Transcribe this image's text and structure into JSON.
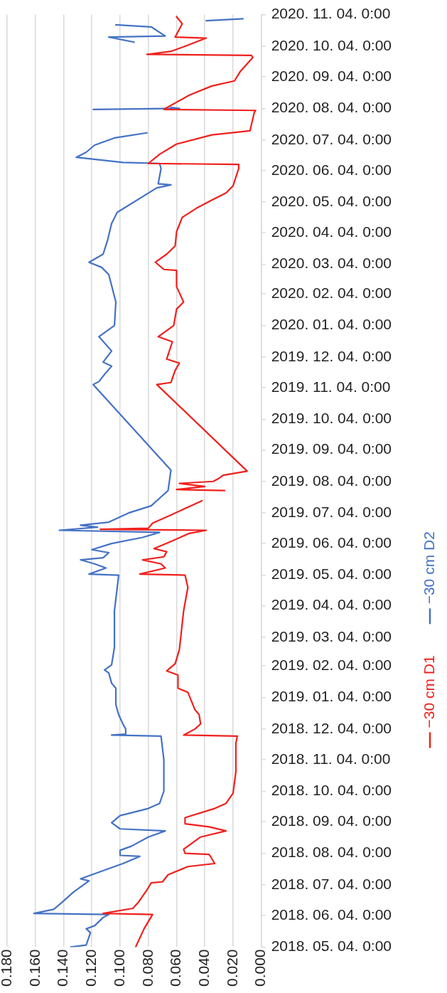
{
  "chart_data": {
    "type": "line",
    "orientation": "horizontal",
    "marker": "none",
    "grid": "x",
    "legend": "right",
    "ylim": [
      "2018-05-04",
      "2020-11-04"
    ],
    "yticks": [
      {
        "value": "2018-05-04",
        "label": "2018. 05. 04. 0:00"
      },
      {
        "value": "2018-06-04",
        "label": "2018. 06. 04. 0:00"
      },
      {
        "value": "2018-07-04",
        "label": "2018. 07. 04. 0:00"
      },
      {
        "value": "2018-08-04",
        "label": "2018. 08. 04. 0:00"
      },
      {
        "value": "2018-09-04",
        "label": "2018. 09. 04. 0:00"
      },
      {
        "value": "2018-10-04",
        "label": "2018. 10. 04. 0:00"
      },
      {
        "value": "2018-11-04",
        "label": "2018. 11. 04. 0:00"
      },
      {
        "value": "2018-12-04",
        "label": "2018. 12. 04. 0:00"
      },
      {
        "value": "2019-01-04",
        "label": "2019. 01. 04. 0:00"
      },
      {
        "value": "2019-02-04",
        "label": "2019. 02. 04. 0:00"
      },
      {
        "value": "2019-03-04",
        "label": "2019. 03. 04. 0:00"
      },
      {
        "value": "2019-04-04",
        "label": "2019. 04. 04. 0:00"
      },
      {
        "value": "2019-05-04",
        "label": "2019. 05. 04. 0:00"
      },
      {
        "value": "2019-06-04",
        "label": "2019. 06. 04. 0:00"
      },
      {
        "value": "2019-07-04",
        "label": "2019. 07. 04. 0:00"
      },
      {
        "value": "2019-08-04",
        "label": "2019. 08. 04. 0:00"
      },
      {
        "value": "2019-09-04",
        "label": "2019. 09. 04. 0:00"
      },
      {
        "value": "2019-10-04",
        "label": "2019. 10. 04. 0:00"
      },
      {
        "value": "2019-11-04",
        "label": "2019. 11. 04. 0:00"
      },
      {
        "value": "2019-12-04",
        "label": "2019. 12. 04. 0:00"
      },
      {
        "value": "2020-01-04",
        "label": "2020. 01. 04. 0:00"
      },
      {
        "value": "2020-02-04",
        "label": "2020. 02. 04. 0:00"
      },
      {
        "value": "2020-03-04",
        "label": "2020. 03. 04. 0:00"
      },
      {
        "value": "2020-04-04",
        "label": "2020. 04. 04. 0:00"
      },
      {
        "value": "2020-05-04",
        "label": "2020. 05. 04. 0:00"
      },
      {
        "value": "2020-06-04",
        "label": "2020. 06. 04. 0:00"
      },
      {
        "value": "2020-07-04",
        "label": "2020. 07. 04. 0:00"
      },
      {
        "value": "2020-08-04",
        "label": "2020. 08. 04. 0:00"
      },
      {
        "value": "2020-09-04",
        "label": "2020. 09. 04. 0:00"
      },
      {
        "value": "2020-10-04",
        "label": "2020. 10. 04. 0:00"
      },
      {
        "value": "2020-11-04",
        "label": "2020. 11. 04. 0:00"
      }
    ],
    "xlim": [
      0.18,
      0
    ],
    "xticks": [
      {
        "value": 0,
        "label": "0.000"
      },
      {
        "value": 0.02,
        "label": "0.020"
      },
      {
        "value": 0.04,
        "label": "0.040"
      },
      {
        "value": 0.06,
        "label": "0.060"
      },
      {
        "value": 0.08,
        "label": "0.080"
      },
      {
        "value": 0.1,
        "label": "0.100"
      },
      {
        "value": 0.12,
        "label": "0.120"
      },
      {
        "value": 0.14,
        "label": "0.140"
      },
      {
        "value": 0.16,
        "label": "0.160"
      },
      {
        "value": 0.18,
        "label": "0.180"
      }
    ],
    "series": [
      {
        "name": "−30 cm D1",
        "color": "#f0201c",
        "x": [
          "2018-05-04",
          "2018-05-22",
          "2018-06-05",
          "2018-06-06",
          "2018-06-11",
          "2018-06-17",
          "2018-06-29",
          "2018-07-06",
          "2018-07-07",
          "2018-07-14",
          "2018-07-22",
          "2018-07-25",
          "2018-08-01",
          "2018-08-03",
          "2018-08-04",
          "2018-08-08",
          "2018-08-20",
          "2018-08-26",
          "2018-08-30",
          "2018-09-02",
          "2018-09-08",
          "2018-09-17",
          "2018-09-22",
          "2018-10-02",
          "2018-10-23",
          "2018-11-20",
          "2018-11-27",
          "2018-11-28",
          "2018-12-04",
          "2018-12-09",
          "2018-12-18",
          "2018-12-23",
          "2019-01-09",
          "2019-01-13",
          "2019-01-26",
          "2019-01-30",
          "2019-02-06",
          "2019-02-20",
          "2019-03-30",
          "2019-04-22",
          "2019-05-04",
          "2019-05-05",
          "2019-05-11",
          "2019-05-15",
          "2019-05-19",
          "2019-05-22",
          "2019-05-27",
          "2019-05-30",
          "2019-06-06",
          "2019-06-14",
          "2019-06-17",
          "2019-06-18",
          "2019-06-19",
          "2019-06-24",
          "2019-07-02",
          "2019-07-16",
          "2019-07-20",
          "2019-07-26",
          "2019-07-27",
          "2019-07-30",
          "2019-08-02",
          "2019-08-04",
          "2019-08-07",
          "2019-08-10",
          "2019-08-14",
          "2019-11-07",
          "2019-11-09",
          "2019-11-21",
          "2019-11-28",
          "2019-12-02",
          "2019-12-19",
          "2019-12-24",
          "2020-01-04",
          "2020-01-20",
          "2020-01-27",
          "2020-02-11",
          "2020-02-27",
          "2020-02-28",
          "2020-03-06",
          "2020-03-14",
          "2020-03-22",
          "2020-04-05",
          "2020-04-19",
          "2020-04-28",
          "2020-05-06",
          "2020-05-13",
          "2020-05-20",
          "2020-06-06",
          "2020-06-10",
          "2020-06-11",
          "2020-06-20",
          "2020-06-30",
          "2020-07-09",
          "2020-07-13",
          "2020-07-31",
          "2020-08-02",
          "2020-08-03",
          "2020-08-17",
          "2020-08-26",
          "2020-08-31",
          "2020-09-09",
          "2020-09-23",
          "2020-09-25",
          "2020-09-26",
          "2020-09-29",
          "2020-10-05",
          "2020-10-12",
          "2020-10-13",
          "2020-10-26",
          "2020-11-02"
        ],
        "values": [
          0.089,
          0.083,
          0.077,
          0.112,
          0.091,
          0.087,
          0.081,
          0.078,
          0.07,
          0.066,
          0.052,
          0.033,
          0.036,
          0.037,
          0.054,
          0.055,
          0.043,
          0.025,
          0.037,
          0.054,
          0.054,
          0.033,
          0.025,
          0.02,
          0.018,
          0.018,
          0.017,
          0.055,
          0.047,
          0.043,
          0.044,
          0.047,
          0.052,
          0.059,
          0.059,
          0.067,
          0.061,
          0.058,
          0.055,
          0.052,
          0.054,
          0.086,
          0.068,
          0.071,
          0.084,
          0.069,
          0.067,
          0.076,
          0.064,
          0.051,
          0.039,
          0.114,
          0.08,
          0.077,
          0.064,
          0.042,
          null,
          0.026,
          0.06,
          0.04,
          0.058,
          0.034,
          0.03,
          0.027,
          0.01,
          0.074,
          0.064,
          0.061,
          0.058,
          0.067,
          0.063,
          0.073,
          0.062,
          0.06,
          0.055,
          0.06,
          0.06,
          0.069,
          0.075,
          0.067,
          0.061,
          0.06,
          0.056,
          0.046,
          0.035,
          0.025,
          0.02,
          0.016,
          0.016,
          0.08,
          0.072,
          0.06,
          0.035,
          0.008,
          0.005,
          0.004,
          0.069,
          0.051,
          0.035,
          0.019,
          0.015,
          0.006,
          0.007,
          0.081,
          0.064,
          0.052,
          0.039,
          0.061,
          0.056,
          0.06
        ]
      },
      {
        "name": "−30 cm D2",
        "color": "#4472c4",
        "x": [
          "2018-05-04",
          "2018-05-06",
          "2018-05-18",
          "2018-05-22",
          "2018-05-25",
          "2018-06-02",
          "2018-06-05",
          "2018-06-06",
          "2018-06-10",
          "2018-06-17",
          "2018-06-27",
          "2018-07-08",
          "2018-07-10",
          "2018-07-18",
          "2018-07-25",
          "2018-08-01",
          "2018-08-02",
          "2018-08-07",
          "2018-08-11",
          "2018-08-20",
          "2018-08-26",
          "2018-08-28",
          "2018-09-03",
          "2018-09-10",
          "2018-09-17",
          "2018-09-22",
          "2018-10-04",
          "2018-11-04",
          "2018-11-27",
          "2018-11-28",
          "2018-11-29",
          "2018-12-04",
          "2018-12-09",
          "2018-12-18",
          "2018-12-28",
          "2019-01-13",
          "2019-01-18",
          "2019-01-28",
          "2019-01-31",
          "2019-02-05",
          "2019-02-22",
          "2019-03-30",
          "2019-04-22",
          "2019-05-04",
          "2019-05-05",
          "2019-05-11",
          "2019-05-15",
          "2019-05-19",
          "2019-05-21",
          "2019-05-26",
          "2019-05-29",
          "2019-06-04",
          "2019-06-10",
          "2019-06-15",
          "2019-06-17",
          "2019-06-20",
          "2019-06-22",
          "2019-06-25",
          "2019-07-04",
          "2019-07-11",
          "2019-07-21",
          "2019-07-26",
          "2019-08-15",
          "2019-11-07",
          "2019-11-10",
          "2019-11-17",
          "2019-11-25",
          "2019-11-29",
          "2019-12-10",
          "2019-12-24",
          "2020-01-04",
          "2020-01-27",
          "2020-02-23",
          "2020-03-01",
          "2020-03-06",
          "2020-03-14",
          "2020-03-27",
          "2020-04-13",
          "2020-04-24",
          "2020-05-18",
          "2020-05-21",
          "2020-05-22",
          "2020-06-06",
          "2020-06-11",
          "2020-06-12",
          "2020-06-17",
          "2020-06-22",
          "2020-06-29",
          "2020-07-06",
          "2020-07-11",
          "2020-07-20",
          "2020-08-03",
          "2020-08-04",
          "2020-08-05",
          "2020-09-01",
          "2020-10-08",
          "2020-10-13",
          "2020-10-14",
          "2020-10-23",
          "2020-10-25",
          "2020-10-27",
          "2020-10-29",
          "2020-10-31"
        ],
        "values": [
          0.135,
          0.124,
          0.121,
          0.124,
          0.118,
          0.112,
          0.108,
          0.161,
          0.147,
          0.141,
          0.133,
          0.122,
          0.128,
          0.112,
          0.098,
          0.086,
          0.1,
          0.1,
          0.092,
          0.08,
          0.068,
          0.1,
          0.106,
          0.1,
          0.08,
          0.072,
          0.069,
          0.069,
          0.071,
          0.106,
          0.096,
          0.096,
          0.098,
          0.101,
          0.103,
          0.103,
          0.106,
          0.108,
          0.111,
          0.106,
          0.104,
          0.104,
          0.102,
          0.101,
          0.122,
          0.11,
          0.118,
          0.128,
          0.112,
          0.108,
          0.12,
          0.106,
          0.084,
          0.072,
          0.143,
          0.116,
          0.128,
          0.108,
          0.094,
          0.078,
          0.07,
          0.066,
          0.064,
          0.119,
          0.115,
          0.111,
          0.106,
          0.112,
          0.106,
          0.115,
          0.104,
          0.103,
          0.108,
          0.113,
          0.122,
          0.112,
          0.109,
          0.106,
          0.102,
          0.074,
          0.064,
          0.073,
          0.071,
          0.072,
          0.098,
          0.131,
          0.124,
          0.118,
          0.104,
          0.081,
          null,
          0.119,
          0.058,
          0.064,
          null,
          0.09,
          0.108,
          0.068,
          0.078,
          0.103,
          null,
          0.039,
          0.013
        ]
      }
    ]
  }
}
